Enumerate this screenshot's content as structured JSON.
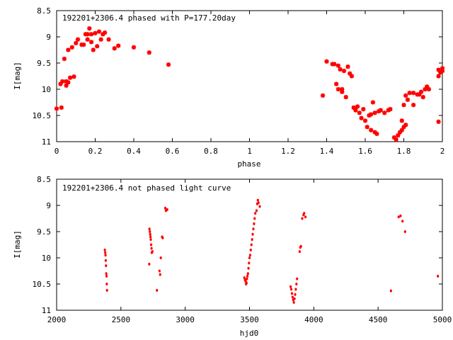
{
  "chart_data": [
    {
      "type": "scatter",
      "title": "192201+2306.4 phased with P=177.20day",
      "xlabel": "phase",
      "ylabel": "I[mag]",
      "xlim": [
        0,
        2
      ],
      "ylim": [
        8.5,
        11
      ],
      "y_inverted": true,
      "xticks": [
        0,
        0.2,
        0.4,
        0.6,
        0.8,
        1,
        1.2,
        1.4,
        1.6,
        1.8,
        2
      ],
      "xtick_labels": [
        "0",
        "0.2",
        "0.4",
        "0.6",
        "0.8",
        "1",
        "1.2",
        "1.4",
        "1.6",
        "1.8",
        "2"
      ],
      "yticks": [
        8.5,
        9,
        9.5,
        10,
        10.5,
        11
      ],
      "ytick_labels": [
        "8.5",
        "9",
        "9.5",
        "10",
        "10.5",
        "11"
      ],
      "marker_color": "#ff0000",
      "marker": "large-point",
      "points": [
        [
          0.0,
          10.37
        ],
        [
          0.02,
          9.9
        ],
        [
          0.03,
          9.85
        ],
        [
          0.025,
          10.35
        ],
        [
          0.04,
          9.42
        ],
        [
          0.05,
          9.93
        ],
        [
          0.05,
          9.85
        ],
        [
          0.06,
          9.87
        ],
        [
          0.06,
          9.25
        ],
        [
          0.07,
          9.78
        ],
        [
          0.08,
          9.2
        ],
        [
          0.09,
          9.76
        ],
        [
          0.1,
          9.12
        ],
        [
          0.11,
          9.05
        ],
        [
          0.13,
          9.15
        ],
        [
          0.14,
          9.15
        ],
        [
          0.15,
          8.95
        ],
        [
          0.16,
          9.05
        ],
        [
          0.16,
          8.95
        ],
        [
          0.17,
          8.84
        ],
        [
          0.18,
          8.95
        ],
        [
          0.18,
          9.1
        ],
        [
          0.19,
          9.25
        ],
        [
          0.2,
          8.93
        ],
        [
          0.21,
          9.18
        ],
        [
          0.22,
          8.9
        ],
        [
          0.23,
          9.05
        ],
        [
          0.24,
          8.95
        ],
        [
          0.25,
          8.92
        ],
        [
          0.27,
          9.05
        ],
        [
          0.3,
          9.22
        ],
        [
          0.32,
          9.17
        ],
        [
          0.4,
          9.2
        ],
        [
          0.48,
          9.3
        ],
        [
          0.58,
          9.53
        ],
        [
          1.38,
          10.12
        ],
        [
          1.4,
          9.47
        ],
        [
          1.43,
          9.52
        ],
        [
          1.44,
          9.52
        ],
        [
          1.45,
          9.9
        ],
        [
          1.46,
          9.55
        ],
        [
          1.46,
          10.0
        ],
        [
          1.47,
          9.62
        ],
        [
          1.48,
          10.05
        ],
        [
          1.48,
          10.0
        ],
        [
          1.49,
          9.65
        ],
        [
          1.5,
          10.15
        ],
        [
          1.51,
          9.57
        ],
        [
          1.52,
          9.7
        ],
        [
          1.53,
          9.75
        ],
        [
          1.54,
          10.35
        ],
        [
          1.55,
          10.4
        ],
        [
          1.56,
          10.33
        ],
        [
          1.57,
          10.45
        ],
        [
          1.58,
          10.55
        ],
        [
          1.59,
          10.38
        ],
        [
          1.6,
          10.6
        ],
        [
          1.61,
          10.72
        ],
        [
          1.62,
          10.5
        ],
        [
          1.63,
          10.48
        ],
        [
          1.63,
          10.78
        ],
        [
          1.64,
          10.25
        ],
        [
          1.65,
          10.82
        ],
        [
          1.65,
          10.45
        ],
        [
          1.66,
          10.85
        ],
        [
          1.67,
          10.42
        ],
        [
          1.68,
          10.4
        ],
        [
          1.7,
          10.45
        ],
        [
          1.72,
          10.4
        ],
        [
          1.73,
          10.38
        ],
        [
          1.75,
          10.92
        ],
        [
          1.76,
          10.96
        ],
        [
          1.77,
          10.88
        ],
        [
          1.78,
          10.82
        ],
        [
          1.79,
          10.78
        ],
        [
          1.79,
          10.6
        ],
        [
          1.8,
          10.72
        ],
        [
          1.81,
          10.68
        ],
        [
          1.8,
          10.3
        ],
        [
          1.81,
          10.12
        ],
        [
          1.82,
          10.2
        ],
        [
          1.83,
          10.07
        ],
        [
          1.85,
          10.3
        ],
        [
          1.85,
          10.07
        ],
        [
          1.87,
          10.1
        ],
        [
          1.88,
          10.1
        ],
        [
          1.89,
          10.05
        ],
        [
          1.9,
          10.15
        ],
        [
          1.91,
          10.0
        ],
        [
          1.92,
          9.95
        ],
        [
          1.93,
          10.0
        ],
        [
          1.98,
          9.75
        ],
        [
          1.98,
          9.63
        ],
        [
          1.98,
          10.62
        ],
        [
          1.99,
          9.68
        ],
        [
          2.0,
          9.65
        ],
        [
          2.0,
          9.6
        ]
      ]
    },
    {
      "type": "scatter",
      "title": "192201+2306.4 not phased light curve",
      "xlabel": "hjd0",
      "ylabel": "I[mag]",
      "xlim": [
        2000,
        5000
      ],
      "ylim": [
        8.5,
        11
      ],
      "y_inverted": true,
      "xticks": [
        2000,
        2500,
        3000,
        3500,
        4000,
        4500,
        5000
      ],
      "xtick_labels": [
        "2000",
        "2500",
        "3000",
        "3500",
        "4000",
        "4500",
        "5000"
      ],
      "yticks": [
        8.5,
        9,
        9.5,
        10,
        10.5,
        11
      ],
      "ytick_labels": [
        "8.5",
        "9",
        "9.5",
        "10",
        "10.5",
        "11"
      ],
      "marker_color": "#ff0000",
      "marker": "small-point",
      "points": [
        [
          2375,
          9.85
        ],
        [
          2378,
          9.9
        ],
        [
          2380,
          9.95
        ],
        [
          2382,
          10.05
        ],
        [
          2384,
          10.15
        ],
        [
          2386,
          10.3
        ],
        [
          2388,
          10.35
        ],
        [
          2390,
          10.5
        ],
        [
          2392,
          10.62
        ],
        [
          2720,
          10.12
        ],
        [
          2722,
          9.45
        ],
        [
          2725,
          9.5
        ],
        [
          2728,
          9.55
        ],
        [
          2730,
          9.6
        ],
        [
          2732,
          9.65
        ],
        [
          2735,
          9.75
        ],
        [
          2738,
          9.82
        ],
        [
          2740,
          9.9
        ],
        [
          2745,
          9.88
        ],
        [
          2780,
          10.62
        ],
        [
          2800,
          10.25
        ],
        [
          2805,
          10.32
        ],
        [
          2810,
          10.0
        ],
        [
          2820,
          9.6
        ],
        [
          2825,
          9.62
        ],
        [
          2845,
          9.05
        ],
        [
          2850,
          9.1
        ],
        [
          2860,
          9.08
        ],
        [
          3460,
          10.38
        ],
        [
          3465,
          10.42
        ],
        [
          3470,
          10.45
        ],
        [
          3473,
          10.5
        ],
        [
          3477,
          10.48
        ],
        [
          3480,
          10.4
        ],
        [
          3484,
          10.35
        ],
        [
          3488,
          10.3
        ],
        [
          3492,
          10.2
        ],
        [
          3496,
          10.1
        ],
        [
          3500,
          10.0
        ],
        [
          3505,
          9.95
        ],
        [
          3510,
          9.85
        ],
        [
          3515,
          9.75
        ],
        [
          3520,
          9.65
        ],
        [
          3525,
          9.55
        ],
        [
          3530,
          9.45
        ],
        [
          3535,
          9.35
        ],
        [
          3540,
          9.25
        ],
        [
          3545,
          9.15
        ],
        [
          3555,
          9.1
        ],
        [
          3560,
          8.97
        ],
        [
          3565,
          8.9
        ],
        [
          3570,
          8.95
        ],
        [
          3580,
          9.02
        ],
        [
          3820,
          10.55
        ],
        [
          3825,
          10.6
        ],
        [
          3830,
          10.68
        ],
        [
          3835,
          10.75
        ],
        [
          3840,
          10.8
        ],
        [
          3845,
          10.85
        ],
        [
          3850,
          10.78
        ],
        [
          3855,
          10.7
        ],
        [
          3860,
          10.6
        ],
        [
          3865,
          10.5
        ],
        [
          3870,
          10.4
        ],
        [
          3890,
          9.88
        ],
        [
          3895,
          9.8
        ],
        [
          3900,
          9.78
        ],
        [
          3910,
          9.25
        ],
        [
          3920,
          9.18
        ],
        [
          3925,
          9.15
        ],
        [
          3935,
          9.22
        ],
        [
          4600,
          10.63
        ],
        [
          4660,
          9.22
        ],
        [
          4675,
          9.2
        ],
        [
          4690,
          9.3
        ],
        [
          4710,
          9.5
        ],
        [
          4965,
          10.35
        ]
      ]
    }
  ]
}
